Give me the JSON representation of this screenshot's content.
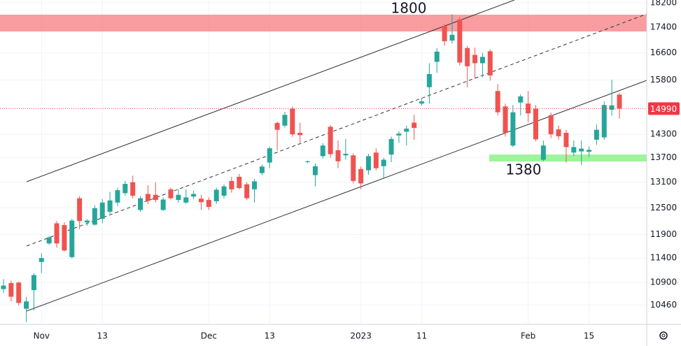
{
  "chart_data": {
    "type": "candlestick",
    "categories": [
      null,
      null,
      null,
      null,
      null,
      "Nov",
      null,
      null,
      null,
      null,
      null,
      null,
      null,
      "13",
      null,
      null,
      null,
      null,
      null,
      null,
      null,
      null,
      null,
      null,
      null,
      null,
      null,
      "Dec",
      null,
      null,
      null,
      null,
      null,
      null,
      null,
      "13",
      null,
      null,
      null,
      null,
      null,
      null,
      null,
      null,
      null,
      null,
      null,
      "2023",
      null,
      null,
      null,
      null,
      null,
      null,
      null,
      "11",
      null,
      null,
      null,
      null,
      null,
      null,
      null,
      null,
      null,
      null,
      null,
      null,
      null,
      "Feb",
      null,
      null,
      null,
      null,
      null,
      null,
      null,
      "15",
      null,
      null,
      null,
      null
    ],
    "open": [
      10770,
      10890,
      10900,
      10390,
      10750,
      11320,
      11710,
      12150,
      12110,
      11420,
      12720,
      12170,
      12120,
      12250,
      12410,
      12620,
      12840,
      13100,
      12450,
      12820,
      12800,
      12450,
      12930,
      12680,
      12620,
      12760,
      12710,
      12680,
      12650,
      12780,
      13130,
      13230,
      13050,
      12930,
      13320,
      13580,
      14600,
      14530,
      14990,
      14340,
      13590,
      13270,
      13740,
      14500,
      13890,
      13760,
      13760,
      13420,
      13390,
      13830,
      13490,
      13780,
      14270,
      14370,
      14610,
      15130,
      15590,
      16330,
      17440,
      16980,
      17650,
      16750,
      16540,
      16290,
      16650,
      15480,
      15050,
      14010,
      15160,
      15130,
      14990,
      13650,
      14810,
      14430,
      14340,
      13830,
      13860,
      13850,
      14160,
      14220,
      14960,
      15380
    ],
    "high": [
      10970,
      10940,
      10920,
      10620,
      11090,
      11500,
      11870,
      12200,
      12170,
      12250,
      12770,
      12240,
      12560,
      12700,
      12870,
      12970,
      13130,
      13260,
      12770,
      13030,
      13100,
      12740,
      12970,
      12930,
      12930,
      12900,
      12800,
      12740,
      12970,
      13050,
      13230,
      13300,
      13100,
      13180,
      13530,
      13980,
      14640,
      14900,
      15050,
      14610,
      13630,
      13560,
      14070,
      14540,
      14140,
      14180,
      13810,
      13480,
      13800,
      13940,
      13700,
      14240,
      14380,
      14530,
      14820,
      15290,
      16290,
      16750,
      17500,
      17820,
      17720,
      16820,
      16760,
      16600,
      16710,
      15680,
      15130,
      15090,
      15390,
      15480,
      15090,
      14140,
      14880,
      14530,
      14420,
      14140,
      14140,
      13990,
      14560,
      15190,
      15800,
      15420
    ],
    "low": [
      10690,
      10530,
      10450,
      10140,
      10360,
      11090,
      11680,
      11620,
      11540,
      11390,
      12020,
      12100,
      12100,
      12150,
      12360,
      12540,
      12780,
      12720,
      12410,
      12580,
      12620,
      12430,
      12690,
      12620,
      12590,
      12700,
      12450,
      12450,
      12590,
      12720,
      12850,
      12930,
      12680,
      12620,
      13270,
      13440,
      13880,
      14480,
      14240,
      14080,
      13560,
      13000,
      13680,
      13700,
      13440,
      13650,
      13070,
      12930,
      13280,
      13390,
      13180,
      13590,
      14080,
      14010,
      14160,
      15070,
      15130,
      16010,
      16820,
      16890,
      16220,
      15590,
      15840,
      15880,
      15780,
      14800,
      14240,
      13970,
      14800,
      14620,
      14120,
      13610,
      14200,
      14160,
      13580,
      13740,
      13520,
      13720,
      14030,
      14160,
      14800,
      14720
    ],
    "close": [
      10840,
      10620,
      10500,
      10530,
      11050,
      11400,
      11840,
      11710,
      11560,
      12210,
      12200,
      12210,
      12490,
      12620,
      12670,
      12910,
      13060,
      12780,
      12720,
      12660,
      12680,
      12690,
      12720,
      12800,
      12740,
      12820,
      12630,
      12520,
      12920,
      13000,
      12930,
      12960,
      12720,
      13120,
      13480,
      13940,
      14420,
      14820,
      14300,
      14280,
      13610,
      13490,
      14010,
      13790,
      13610,
      13800,
      13130,
      13070,
      13740,
      13440,
      13650,
      14180,
      14320,
      14450,
      14470,
      15190,
      15970,
      16640,
      16960,
      17160,
      16310,
      16200,
      16290,
      16480,
      15930,
      14890,
      14340,
      14890,
      15330,
      14860,
      14170,
      14010,
      14300,
      14250,
      13970,
      13970,
      13930,
      13900,
      14420,
      15090,
      15080,
      14990
    ],
    "up_color": "#26a69a",
    "down_color": "#ef5350",
    "ylim": [
      10110,
      18290
    ],
    "log_scale": true,
    "yticks": [
      10460,
      10900,
      11400,
      11900,
      12500,
      13100,
      13700,
      14300,
      15800,
      16600,
      17400,
      18200
    ],
    "grid": true,
    "last_price": 14990,
    "last_price_color": "#f23645",
    "annotations": [
      "1800",
      "1380"
    ]
  }
}
